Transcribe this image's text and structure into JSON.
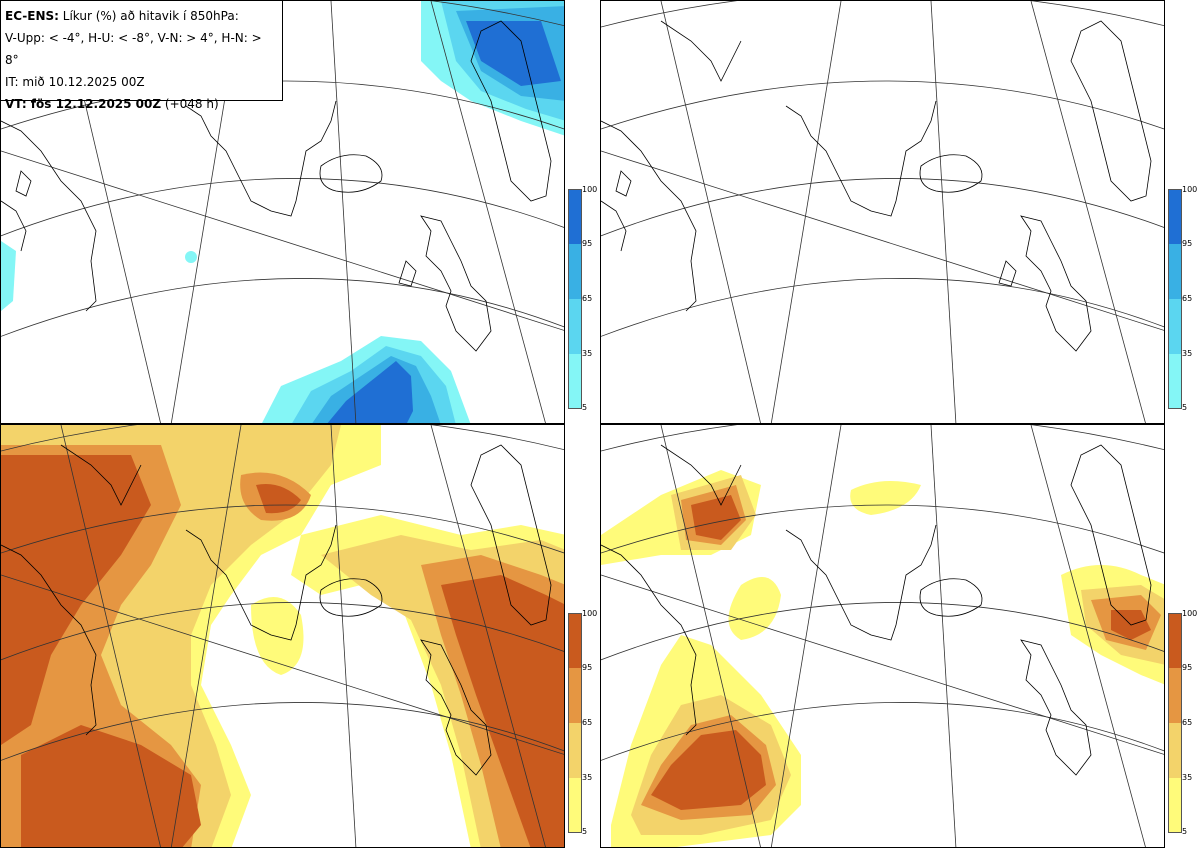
{
  "title": {
    "model": "EC-ENS:",
    "description": " Líkur (%) að hitavik í 850hPa:",
    "thresholds": "V-Upp: < -4°, H-U: < -8°, V-N: > 4°, H-N: > 8°",
    "initial_time": "IT: mið 10.12.2025 00Z",
    "valid_label": "VT: fös 12.12.2025 00Z",
    "lead_time": " (+048 h)"
  },
  "colors": {
    "cold": [
      "#84f6f6",
      "#5bd6f0",
      "#39b0e4",
      "#1f6fd4"
    ],
    "warm": [
      "#fffb7a",
      "#f3d36a",
      "#e59642",
      "#c95a1e"
    ],
    "land_outline": "#000000",
    "grid": "#333333"
  },
  "colorbars": {
    "cold_ticks": [
      "100",
      "95",
      "65",
      "35",
      "5"
    ],
    "warm_ticks": [
      "100",
      "95",
      "65",
      "35",
      "5"
    ]
  },
  "panels": [
    {
      "id": "cold-minus4",
      "palette": "cold",
      "threshold": "< -4°"
    },
    {
      "id": "cold-minus8",
      "palette": "cold",
      "threshold": "< -8°"
    },
    {
      "id": "warm-plus4",
      "palette": "warm",
      "threshold": "> 4°"
    },
    {
      "id": "warm-plus8",
      "palette": "warm",
      "threshold": "> 8°"
    }
  ]
}
